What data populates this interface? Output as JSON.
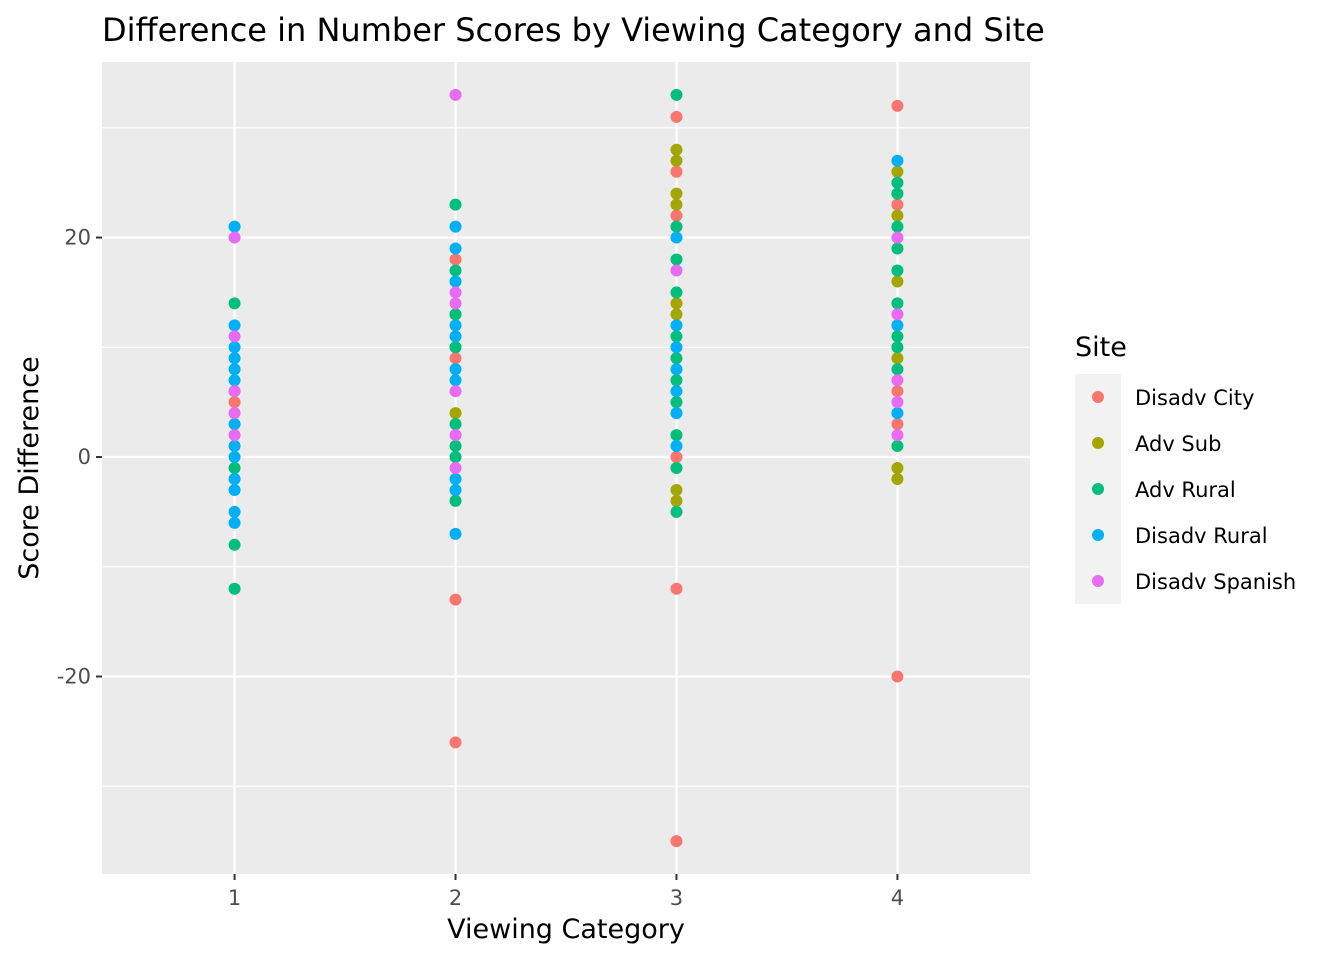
{
  "chart_data": {
    "type": "scatter",
    "title": "Difference in Number Scores by Viewing Category and Site",
    "xlabel": "Viewing Category",
    "ylabel": "Score Difference",
    "xlim": [
      0.4,
      4.6
    ],
    "ylim": [
      -38,
      36
    ],
    "x_ticks": [
      1,
      2,
      3,
      4
    ],
    "y_ticks": [
      -20,
      0,
      20
    ],
    "y_minor_ticks": [
      -30,
      -10,
      10,
      30
    ],
    "grid": true,
    "background": "#ebebeb",
    "legend": {
      "title": "Site",
      "placement": "right"
    },
    "series": [
      {
        "name": "Disadv City",
        "color": "#F8766D",
        "points": [
          [
            1,
            5
          ],
          [
            1,
            6
          ],
          [
            2,
            18
          ],
          [
            2,
            9
          ],
          [
            2,
            -13
          ],
          [
            2,
            -26
          ],
          [
            3,
            31
          ],
          [
            3,
            26
          ],
          [
            3,
            22
          ],
          [
            3,
            0
          ],
          [
            3,
            -12
          ],
          [
            3,
            -35
          ],
          [
            4,
            32
          ],
          [
            4,
            23
          ],
          [
            4,
            6
          ],
          [
            4,
            3
          ],
          [
            4,
            -20
          ]
        ]
      },
      {
        "name": "Adv Sub",
        "color": "#A3A500",
        "points": [
          [
            2,
            10
          ],
          [
            2,
            4
          ],
          [
            2,
            13
          ],
          [
            3,
            28
          ],
          [
            3,
            27
          ],
          [
            3,
            24
          ],
          [
            3,
            23
          ],
          [
            3,
            14
          ],
          [
            3,
            13
          ],
          [
            3,
            -3
          ],
          [
            3,
            -4
          ],
          [
            4,
            26
          ],
          [
            4,
            22
          ],
          [
            4,
            16
          ],
          [
            4,
            9
          ],
          [
            4,
            -1
          ],
          [
            4,
            -2
          ]
        ]
      },
      {
        "name": "Adv Rural",
        "color": "#00BF7D",
        "points": [
          [
            1,
            14
          ],
          [
            1,
            -1
          ],
          [
            1,
            -8
          ],
          [
            1,
            -12
          ],
          [
            2,
            23
          ],
          [
            2,
            17
          ],
          [
            2,
            13
          ],
          [
            2,
            10
          ],
          [
            2,
            3
          ],
          [
            2,
            1
          ],
          [
            2,
            0
          ],
          [
            2,
            -4
          ],
          [
            3,
            33
          ],
          [
            3,
            21
          ],
          [
            3,
            18
          ],
          [
            3,
            15
          ],
          [
            3,
            11
          ],
          [
            3,
            9
          ],
          [
            3,
            7
          ],
          [
            3,
            5
          ],
          [
            3,
            2
          ],
          [
            3,
            -1
          ],
          [
            3,
            -5
          ],
          [
            4,
            25
          ],
          [
            4,
            24
          ],
          [
            4,
            21
          ],
          [
            4,
            19
          ],
          [
            4,
            17
          ],
          [
            4,
            14
          ],
          [
            4,
            11
          ],
          [
            4,
            10
          ],
          [
            4,
            8
          ],
          [
            4,
            1
          ]
        ]
      },
      {
        "name": "Disadv Rural",
        "color": "#00B0F6",
        "points": [
          [
            1,
            21
          ],
          [
            1,
            12
          ],
          [
            1,
            10
          ],
          [
            1,
            9
          ],
          [
            1,
            8
          ],
          [
            1,
            7
          ],
          [
            1,
            3
          ],
          [
            1,
            1
          ],
          [
            1,
            0
          ],
          [
            1,
            -2
          ],
          [
            1,
            -3
          ],
          [
            1,
            -5
          ],
          [
            1,
            -6
          ],
          [
            2,
            21
          ],
          [
            2,
            19
          ],
          [
            2,
            16
          ],
          [
            2,
            12
          ],
          [
            2,
            11
          ],
          [
            2,
            8
          ],
          [
            2,
            7
          ],
          [
            2,
            -2
          ],
          [
            2,
            -3
          ],
          [
            2,
            -7
          ],
          [
            3,
            20
          ],
          [
            3,
            12
          ],
          [
            3,
            10
          ],
          [
            3,
            8
          ],
          [
            3,
            6
          ],
          [
            3,
            4
          ],
          [
            3,
            1
          ],
          [
            4,
            27
          ],
          [
            4,
            12
          ],
          [
            4,
            4
          ]
        ]
      },
      {
        "name": "Disadv Spanish",
        "color": "#E76BF3",
        "points": [
          [
            1,
            20
          ],
          [
            1,
            11
          ],
          [
            1,
            6
          ],
          [
            1,
            4
          ],
          [
            1,
            2
          ],
          [
            2,
            33
          ],
          [
            2,
            15
          ],
          [
            2,
            14
          ],
          [
            2,
            6
          ],
          [
            2,
            2
          ],
          [
            2,
            -1
          ],
          [
            3,
            17
          ],
          [
            4,
            20
          ],
          [
            4,
            13
          ],
          [
            4,
            7
          ],
          [
            4,
            5
          ],
          [
            4,
            2
          ]
        ]
      }
    ]
  }
}
